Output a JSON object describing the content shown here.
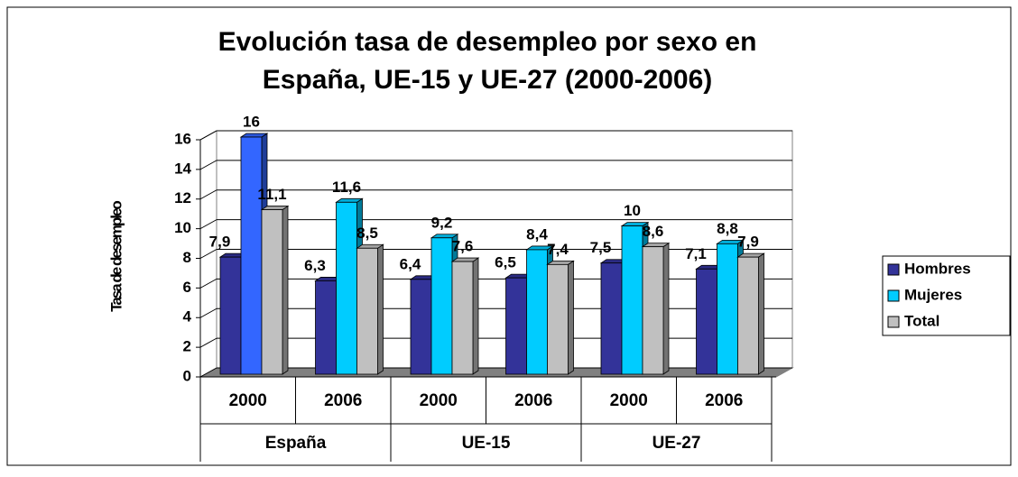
{
  "chart_data": {
    "type": "bar3d",
    "title": [
      "Evolución tasa de desempleo por sexo en",
      "España, UE-15 y UE-27 (2000-2006)"
    ],
    "y_label": "Tasa de desempleo",
    "categories": [
      "2000",
      "2006",
      "2000",
      "2006",
      "2000",
      "2006"
    ],
    "groups": [
      "España",
      "UE-15",
      "UE-27"
    ],
    "series": [
      {
        "name": "Hombres",
        "color": "#333399",
        "values": [
          7.9,
          6.3,
          6.4,
          6.5,
          7.5,
          7.1
        ],
        "value_labels": [
          "7,9",
          "6,3",
          "6,4",
          "6,5",
          "7,5",
          "7,1"
        ]
      },
      {
        "name": "Mujeres",
        "color": "#00ccff",
        "colors": [
          "#3366ff",
          "#00ccff",
          "#00ccff",
          "#00ccff",
          "#00ccff",
          "#00ccff"
        ],
        "values": [
          16,
          11.6,
          9.2,
          8.4,
          10,
          8.8
        ],
        "value_labels": [
          "16",
          "11,6",
          "9,2",
          "8,4",
          "10",
          "8,8"
        ]
      },
      {
        "name": "Total",
        "color": "#c0c0c0",
        "values": [
          11.1,
          8.5,
          7.6,
          7.4,
          8.6,
          7.9
        ],
        "value_labels": [
          "11,1",
          "8,5",
          "7,6",
          "7,4",
          "8,6",
          "7,9"
        ]
      }
    ],
    "ylim": [
      0,
      16
    ],
    "yticks": [
      0,
      2,
      4,
      6,
      8,
      10,
      12,
      14,
      16
    ],
    "grid": true,
    "legend": "right"
  }
}
